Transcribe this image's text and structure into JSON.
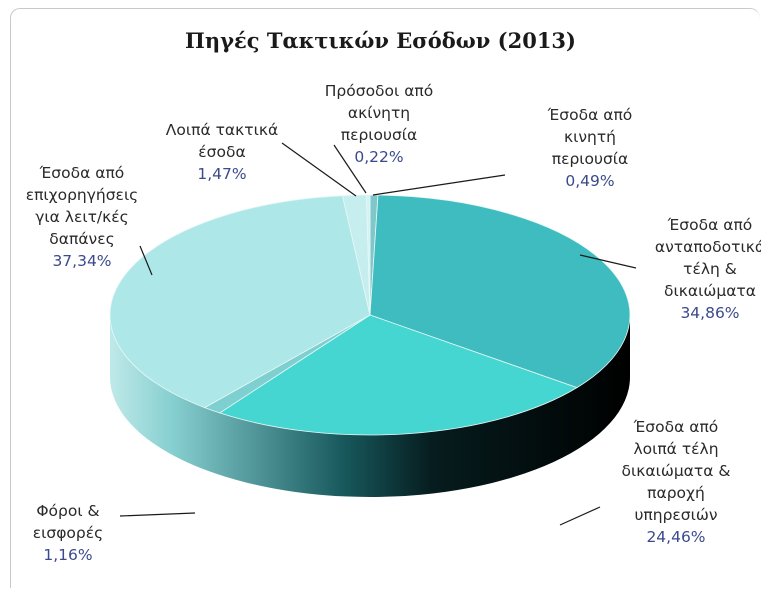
{
  "chart_data": {
    "type": "pie",
    "title": "Πηγές Τακτικών Εσόδων (2013)",
    "slices": [
      {
        "label_lines": [
          "Έσοδα από",
          "κινητή",
          "περιουσία"
        ],
        "value_text": "0,49%",
        "value": 0.49,
        "color": "#7fc7c8"
      },
      {
        "label_lines": [
          "Έσοδα από",
          "ανταποδοτικά",
          "τέλη &",
          "δικαιώματα"
        ],
        "value_text": "34,86%",
        "value": 34.86,
        "color": "#3fbcbf"
      },
      {
        "label_lines": [
          "Έσοδα από",
          "λοιπά τέλη",
          "δικαιώματα &",
          "παροχή",
          "υπηρεσιών"
        ],
        "value_text": "24,46%",
        "value": 24.46,
        "color": "#46d6d2"
      },
      {
        "label_lines": [
          "Φόροι &",
          "εισφορές"
        ],
        "value_text": "1,16%",
        "value": 1.16,
        "color": "#7ecfcf"
      },
      {
        "label_lines": [
          "Έσοδα από",
          "επιχορηγήσεις",
          "για λειτ/κές",
          "δαπάνες"
        ],
        "value_text": "37,34%",
        "value": 37.34,
        "color": "#aee7e8"
      },
      {
        "label_lines": [
          "Λοιπά τακτικά",
          "έσοδα"
        ],
        "value_text": "1,47%",
        "value": 1.47,
        "color": "#c7eeee"
      },
      {
        "label_lines": [
          "Πρόσοδοι από",
          "ακίνητη",
          "περιουσία"
        ],
        "value_text": "0,22%",
        "value": 0.22,
        "color": "#d5f2f2"
      }
    ]
  }
}
